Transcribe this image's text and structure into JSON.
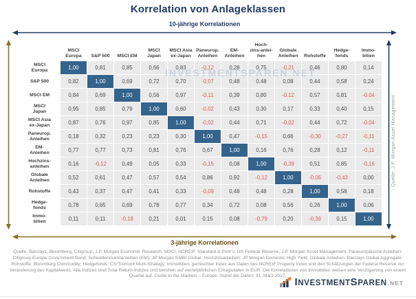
{
  "title": "Korrelation von Anlageklassen",
  "arrows": {
    "top_label": "10-jährige Korrelationen",
    "bottom_label": "3-jährige Korrelationen",
    "right_source": "Quelle: J.P. Morgan Asset Management"
  },
  "colors": {
    "navy_arrow": "#1e3a66",
    "brown_arrow": "#8a6d1d",
    "diagonal_cell": "#34638c",
    "cell_background": "#eaeaea",
    "negative_value": "#e05a5a",
    "logo_orange": "#e8821e"
  },
  "watermark": "INVESTMENTSPAREN.NET",
  "chart_data": {
    "type": "heatmap",
    "title": "Korrelation von Anlageklassen",
    "upper_triangle_label": "10-jährige Korrelationen",
    "lower_triangle_label": "3-jährige Korrelationen",
    "columns": [
      "MSCI\nEuropa",
      "S&P 500",
      "MSCI EM",
      "MSCI\nJapan",
      "MSCI Asia\nex-Japan",
      "Paneurop.\nAnleihen",
      "EM-\nAnleihen",
      "Hoch-\nzins-anlei-\nhen",
      "Globale\nAnleihen",
      "Rohstoffe",
      "Hedge-\nfonds",
      "Immo-\nbilien"
    ],
    "rows": [
      {
        "label": "MSCI\nEuropa",
        "values": [
          "1,00",
          "0,81",
          "0,85",
          "0,66",
          "0,83",
          "-0,12",
          "0,28",
          "0,75",
          "-0,21",
          "0,46",
          "0,80",
          "0,14"
        ]
      },
      {
        "label": "S&P 500",
        "values": [
          "0,82",
          "1,00",
          "0,69",
          "0,72",
          "0,70",
          "-0,07",
          "0,48",
          "0,48",
          "0,08",
          "0,44",
          "0,58",
          "0,24"
        ]
      },
      {
        "label": "MSCI EM",
        "values": [
          "0,84",
          "0,69",
          "1,00",
          "0,56",
          "0,97",
          "-0,11",
          "0,39",
          "0,80",
          "-0,12",
          "0,57",
          "0,81",
          "-0,04"
        ]
      },
      {
        "label": "MSCI\nJapan",
        "values": [
          "0,95",
          "0,85",
          "0,79",
          "1,00",
          "0,60",
          "-0,02",
          "0,43",
          "0,30",
          "0,17",
          "0,33",
          "0,40",
          "0,15"
        ]
      },
      {
        "label": "MSCI Asia\nex-Japan",
        "values": [
          "0,87",
          "0,76",
          "0,97",
          "0,85",
          "1,00",
          "-0,02",
          "0,44",
          "0,71",
          "-0,02",
          "0,44",
          "0,72",
          "-0,04"
        ]
      },
      {
        "label": "Paneurop.\nAnleihen",
        "values": [
          "0,18",
          "0,32",
          "0,23",
          "0,23",
          "0,30",
          "1,00",
          "0,47",
          "-0,15",
          "0,66",
          "-0,30",
          "-0,27",
          "-0,11"
        ]
      },
      {
        "label": "EM-\nAnleihen",
        "values": [
          "0,77",
          "0,77",
          "0,73",
          "0,81",
          "0,76",
          "0,67",
          "1,00",
          "0,16",
          "0,76",
          "0,28",
          "0,12",
          "-0,11"
        ]
      },
      {
        "label": "Hochzins-\nanleihen",
        "values": [
          "0,16",
          "-0,12",
          "0,49",
          "0,05",
          "0,33",
          "-0,15",
          "0,08",
          "1,00",
          "-0,39",
          "0,51",
          "0,85",
          "-0,16"
        ]
      },
      {
        "label": "Globale\nAnleihen",
        "values": [
          "0,52",
          "0,61",
          "0,47",
          "0,57",
          "0,54",
          "0,86",
          "0,92",
          "-0,12",
          "1,00",
          "-0,06",
          "-0,43",
          "0,00"
        ]
      },
      {
        "label": "Rohstoffe",
        "values": [
          "0,43",
          "0,37",
          "0,47",
          "0,41",
          "0,33",
          "-0,09",
          "0,48",
          "0,48",
          "0,28",
          "1,00",
          "0,58",
          "0,18"
        ]
      },
      {
        "label": "Hedge-\nfonds",
        "values": [
          "0,78",
          "0,65",
          "0,69",
          "0,78",
          "0,77",
          "0,34",
          "0,72",
          "0,08",
          "0,56",
          "0,26",
          "1,00",
          "0,06"
        ]
      },
      {
        "label": "Immo-\nbilien",
        "values": [
          "0,11",
          "0,11",
          "-0,18",
          "0,21",
          "0,01",
          "0,15",
          "0,08",
          "-0,79",
          "0,20",
          "-0,39",
          "0,15",
          "1,00"
        ]
      }
    ]
  },
  "footer": {
    "source_text": "Quelle: Barclays, Bloomberg, Citigroup, J.P. Morgan Economic Research, MSCI, NCREIF, Standard & Poor's, US Federal Reserve, J.P. Morgan Asset Management. Paneuropäische Anleihen: Citigroup Europe Government Bond; Schwellenmarktanleihen (EM): JP Morgan EMBI Global; Hochzinsanleihen: JP Morgan Domestic High Yield; Globale Anleihen: Barclays Global Aggregate; Rohstoffe: Bloomberg Commodity; Hedgefonds: CS/Tremont Multi-Strategy; Immobilien: gemischter Index aus Daten des NCREIF Property Index und den Schätzungen der Federal Reserve zur Veränderung des Kapitalwerts. Alle Indizes sind Total-Return-Indizes und beruhen auf vierteljährlichen Ertragsdaten in EUR. Die Korrelationen von Immobilien weisen eine Verzögerung von einem Quartal auf. Guide to the Markets – Europe. Stand der Daten: 31. März 2017."
  },
  "logo": {
    "lead1": "I",
    "body1": "NVESTMENT",
    "lead2": "S",
    "body2": "PAREN",
    "suffix": ".NET"
  }
}
